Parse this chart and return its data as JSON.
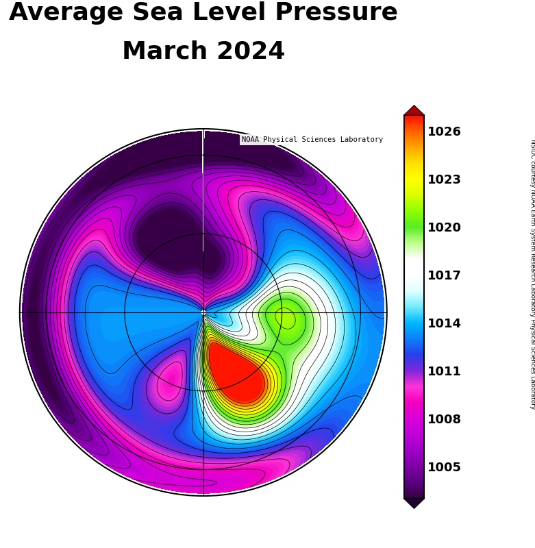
{
  "title_line1": "Average Sea Level Pressure",
  "title_line2": "March 2024",
  "title_fontsize": 26,
  "colorbar_ticks": [
    1005,
    1008,
    1011,
    1014,
    1017,
    1020,
    1023,
    1026
  ],
  "vmin": 1003,
  "vmax": 1027,
  "colorbar_fontsize": 13,
  "noaa_label": "NOAA Physical Sciences Laboratory",
  "attribution": "NSIDC courtesy NOAA Earth System Research Laboratory Physical Sciences Laboratory",
  "central_longitude": 0,
  "map_boundary_lat": 20
}
